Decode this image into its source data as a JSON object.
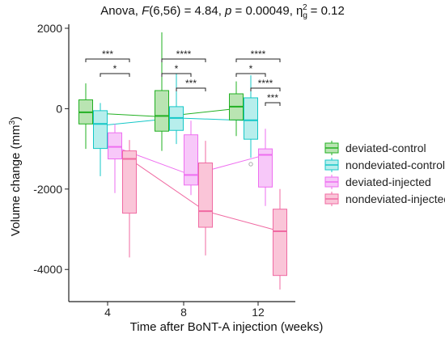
{
  "chart_data": {
    "type": "box",
    "title": {
      "prefix": "Anova, ",
      "f_symbol": "F",
      "f_value": "(6,56) = 4.84, ",
      "p_symbol": "p",
      "p_value": " = 0.00049, ",
      "eta_symbol": "η",
      "eta_sub": "g",
      "eta_sup": "2",
      "eta_value": " = 0.12"
    },
    "xlabel": "Time after BoNT-A injection (weeks)",
    "ylabel": "Volume change (mm",
    "ylabel_sup": "3",
    "ylabel_suffix": ")",
    "categories": [
      "4",
      "8",
      "12"
    ],
    "yticks": [
      "2000",
      "0",
      "-2000",
      "-4000"
    ],
    "ylim": [
      -4800,
      2100
    ],
    "legend_position": "right",
    "series": [
      {
        "name": "deviated-control",
        "color": "#22b022",
        "fill": "#b9e4b2",
        "stats": [
          {
            "min": -1000,
            "q1": -380,
            "median": -90,
            "q3": 220,
            "max": 630
          },
          {
            "min": -1050,
            "q1": -560,
            "median": -180,
            "q3": 450,
            "max": 1900
          },
          {
            "min": -680,
            "q1": -280,
            "median": 50,
            "q3": 370,
            "max": 680
          }
        ],
        "outliers": [
          [],
          [],
          []
        ],
        "means": [
          -100,
          -200,
          0
        ]
      },
      {
        "name": "nondeviated-control",
        "color": "#14c7c7",
        "fill": "#b7eeec",
        "stats": [
          {
            "min": -1680,
            "q1": -990,
            "median": -380,
            "q3": -50,
            "max": 140
          },
          {
            "min": -880,
            "q1": -540,
            "median": -230,
            "q3": 50,
            "max": 880
          },
          {
            "min": -1220,
            "q1": -760,
            "median": -290,
            "q3": 270,
            "max": 830
          }
        ],
        "outliers": [
          [],
          [],
          [
            -1380
          ]
        ],
        "means": [
          -420,
          -230,
          -300
        ]
      },
      {
        "name": "deviated-injected",
        "color": "#ee6ef0",
        "fill": "#f7c8f9",
        "stats": [
          {
            "min": -2100,
            "q1": -1250,
            "median": -950,
            "q3": -600,
            "max": -380
          },
          {
            "min": -2150,
            "q1": -1900,
            "median": -1650,
            "q3": -650,
            "max": -300
          },
          {
            "min": -2420,
            "q1": -1950,
            "median": -1150,
            "q3": -1000,
            "max": -500
          }
        ],
        "outliers": [
          [],
          [],
          []
        ],
        "means": [
          -950,
          -1650,
          -1150
        ]
      },
      {
        "name": "nondeviated-injected",
        "color": "#f06aa2",
        "fill": "#fac5d8",
        "stats": [
          {
            "min": -3700,
            "q1": -2600,
            "median": -1250,
            "q3": -1050,
            "max": -780
          },
          {
            "min": -3650,
            "q1": -2950,
            "median": -2550,
            "q3": -1350,
            "max": -800
          },
          {
            "min": -4500,
            "q1": -4150,
            "median": -3050,
            "q3": -2500,
            "max": -2000
          }
        ],
        "outliers": [
          [],
          [],
          []
        ],
        "means": [
          -1250,
          -2550,
          -3050
        ]
      }
    ],
    "significance": [
      {
        "group": 0,
        "from": 0,
        "to": 3,
        "label": "***"
      },
      {
        "group": 0,
        "from": 1,
        "to": 3,
        "label": "*"
      },
      {
        "group": 1,
        "from": 0,
        "to": 3,
        "label": "****"
      },
      {
        "group": 1,
        "from": 0,
        "to": 2,
        "label": "*"
      },
      {
        "group": 1,
        "from": 1,
        "to": 3,
        "label": "***"
      },
      {
        "group": 2,
        "from": 0,
        "to": 3,
        "label": "****"
      },
      {
        "group": 2,
        "from": 0,
        "to": 2,
        "label": "*"
      },
      {
        "group": 2,
        "from": 1,
        "to": 3,
        "label": "****"
      },
      {
        "group": 2,
        "from": 2,
        "to": 3,
        "label": "***"
      }
    ]
  }
}
